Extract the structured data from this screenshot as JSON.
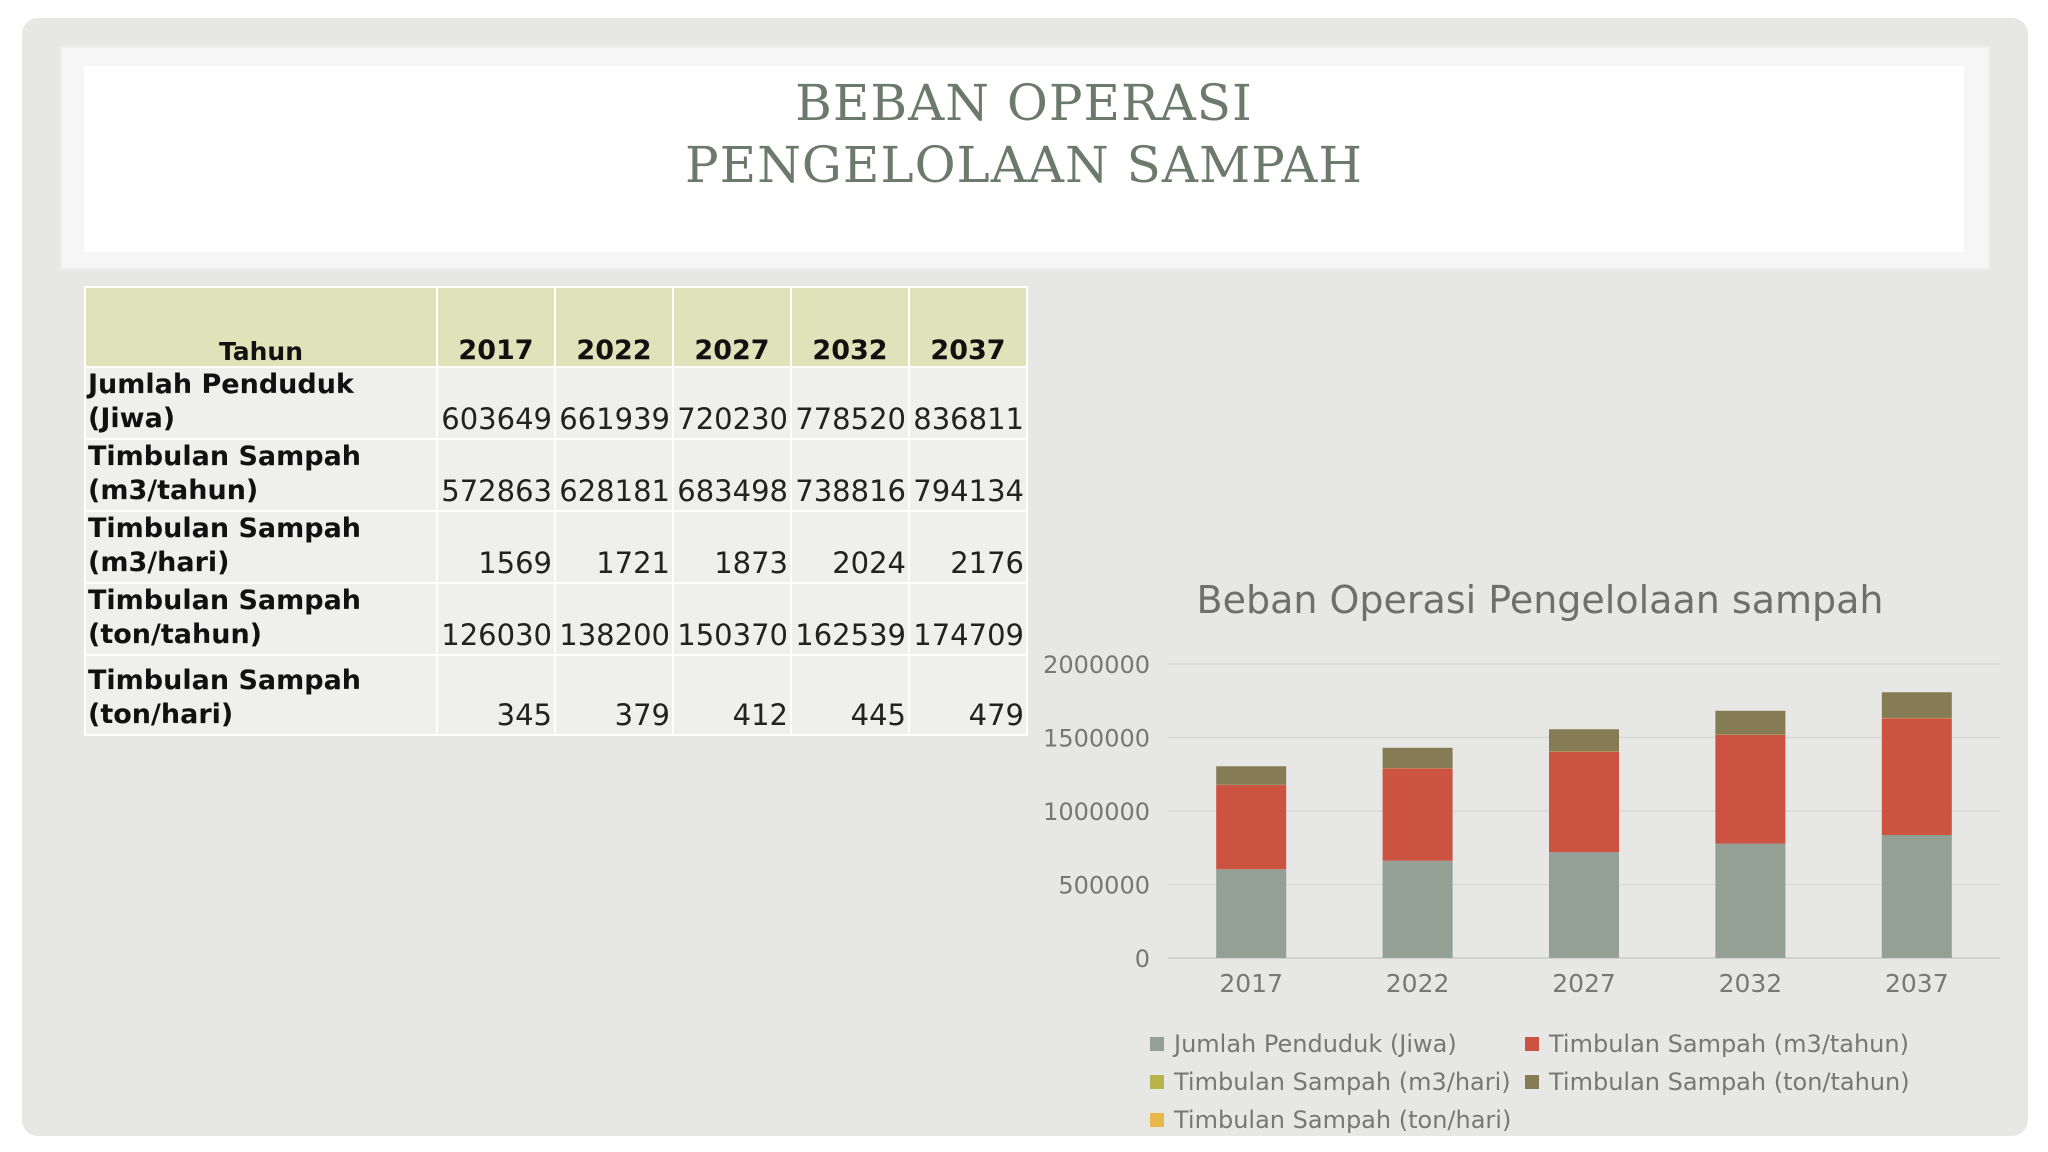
{
  "slide": {
    "title_line1": "BEBAN OPERASI",
    "title_line2": "PENGELOLAAN SAMPAH"
  },
  "table": {
    "header": [
      "Tahun",
      "2017",
      "2022",
      "2027",
      "2032",
      "2037"
    ],
    "rows": [
      {
        "label": "Jumlah Penduduk (Jiwa)",
        "values": [
          "603649",
          "661939",
          "720230",
          "778520",
          "836811"
        ]
      },
      {
        "label": "Timbulan Sampah (m3/tahun)",
        "values": [
          "572863",
          "628181",
          "683498",
          "738816",
          "794134"
        ]
      },
      {
        "label": "Timbulan Sampah (m3/hari)",
        "values": [
          "1569",
          "1721",
          "1873",
          "2024",
          "2176"
        ]
      },
      {
        "label": "Timbulan Sampah (ton/tahun)",
        "values": [
          "126030",
          "138200",
          "150370",
          "162539",
          "174709"
        ]
      },
      {
        "label": "Timbulan Sampah (ton/hari)",
        "values": [
          "345",
          "379",
          "412",
          "445",
          "479"
        ]
      }
    ]
  },
  "chart_data": {
    "type": "bar",
    "stacked": true,
    "title": "Beban Operasi Pengelolaan sampah",
    "xlabel": "",
    "ylabel": "",
    "categories": [
      "2017",
      "2022",
      "2027",
      "2032",
      "2037"
    ],
    "ylim": [
      0,
      2000000
    ],
    "yticks": [
      0,
      500000,
      1000000,
      1500000,
      2000000
    ],
    "grid": true,
    "legend_position": "bottom",
    "series": [
      {
        "name": "Jumlah Penduduk (Jiwa)",
        "color": "#949f96",
        "values": [
          603649,
          661939,
          720230,
          778520,
          836811
        ]
      },
      {
        "name": "Timbulan Sampah (m3/tahun)",
        "color": "#cc5340",
        "values": [
          572863,
          628181,
          683498,
          738816,
          794134
        ]
      },
      {
        "name": "Timbulan Sampah (m3/hari)",
        "color": "#b7b44c",
        "values": [
          1569,
          1721,
          1873,
          2024,
          2176
        ]
      },
      {
        "name": "Timbulan Sampah (ton/tahun)",
        "color": "#857b55",
        "values": [
          126030,
          138200,
          150370,
          162539,
          174709
        ]
      },
      {
        "name": "Timbulan Sampah (ton/hari)",
        "color": "#e8b84a",
        "values": [
          345,
          379,
          412,
          445,
          479
        ]
      }
    ]
  }
}
